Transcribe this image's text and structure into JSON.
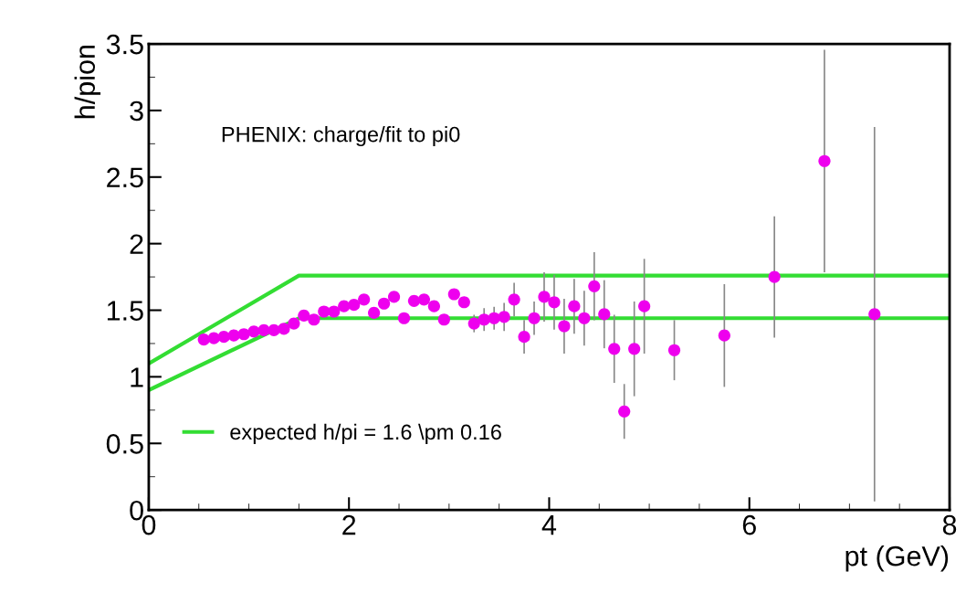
{
  "chart_data": {
    "type": "scatter",
    "xlabel": "pt (GeV)",
    "ylabel": "h/pion",
    "annotations": [
      "PHENIX: charge/fit to pi0"
    ],
    "xlim": [
      0,
      8
    ],
    "xticks": [
      0,
      2,
      4,
      6,
      8
    ],
    "ylim": [
      0,
      3.5
    ],
    "yticks": [
      0,
      0.5,
      1,
      1.5,
      2,
      2.5,
      3,
      3.5
    ],
    "grid": false,
    "legend": "bottom left",
    "series": [
      {
        "marker": "circle",
        "color": "#ee00ee",
        "x": [
          0.55,
          0.65,
          0.75,
          0.85,
          0.95,
          1.05,
          1.15,
          1.25,
          1.35,
          1.45,
          1.55,
          1.65,
          1.75,
          1.85,
          1.95,
          2.05,
          2.15,
          2.25,
          2.35,
          2.45,
          2.55,
          2.65,
          2.75,
          2.85,
          2.95,
          3.05,
          3.15,
          3.25,
          3.35,
          3.45,
          3.55,
          3.65,
          3.75,
          3.85,
          3.95,
          4.05,
          4.15,
          4.25,
          4.35,
          4.45,
          4.55,
          4.65,
          4.75,
          4.85,
          4.95,
          5.25,
          5.75,
          6.25,
          6.75,
          7.25
        ],
        "values": [
          1.28,
          1.29,
          1.3,
          1.31,
          1.32,
          1.34,
          1.35,
          1.35,
          1.36,
          1.4,
          1.46,
          1.43,
          1.49,
          1.49,
          1.53,
          1.54,
          1.58,
          1.48,
          1.55,
          1.6,
          1.44,
          1.57,
          1.58,
          1.53,
          1.43,
          1.62,
          1.56,
          1.4,
          1.43,
          1.44,
          1.45,
          1.58,
          1.3,
          1.44,
          1.6,
          1.56,
          1.38,
          1.53,
          1.44,
          1.68,
          1.47,
          1.21,
          0.74,
          1.21,
          1.53,
          1.2,
          1.31,
          1.75,
          2.62,
          1.47
        ],
        "errors": [
          null,
          null,
          null,
          null,
          null,
          null,
          null,
          null,
          null,
          null,
          null,
          null,
          null,
          null,
          null,
          null,
          null,
          null,
          null,
          null,
          null,
          null,
          null,
          null,
          null,
          null,
          null,
          0.06,
          0.08,
          0.08,
          0.1,
          0.12,
          0.12,
          0.12,
          0.18,
          0.2,
          0.2,
          0.2,
          0.2,
          0.25,
          0.25,
          0.25,
          0.2,
          0.35,
          0.35,
          0.22,
          0.38,
          0.45,
          0.83,
          1.4
        ]
      },
      {
        "type": "line",
        "marker": "none",
        "name": "expected h/pi = 1.6 \\pm 0.16",
        "color": "#33dd33",
        "x": [
          0,
          1.5,
          8
        ],
        "values": [
          1.1,
          1.76,
          1.76
        ]
      },
      {
        "type": "line",
        "marker": "none",
        "color": "#33dd33",
        "x": [
          0,
          1.5,
          8
        ],
        "values": [
          0.9,
          1.44,
          1.44
        ]
      }
    ]
  }
}
